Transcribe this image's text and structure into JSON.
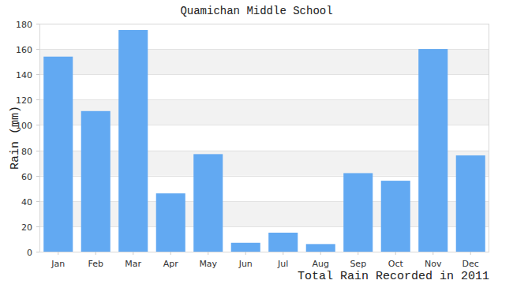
{
  "chart_data": {
    "type": "bar",
    "title": "Quamichan Middle School",
    "y_label": "Rain (mm)",
    "x_label": "Total Rain Recorded in 2011",
    "categories": [
      "Jan",
      "Feb",
      "Mar",
      "Apr",
      "May",
      "Jun",
      "Jul",
      "Aug",
      "Sep",
      "Oct",
      "Nov",
      "Dec"
    ],
    "values": [
      154,
      111,
      175,
      46,
      77,
      7,
      15,
      6,
      62,
      56,
      160,
      76
    ],
    "color": "#62a9f2",
    "ylim": [
      0,
      180
    ],
    "yticks": [
      0,
      20,
      40,
      60,
      80,
      100,
      120,
      140,
      160,
      180
    ],
    "grid": true
  }
}
